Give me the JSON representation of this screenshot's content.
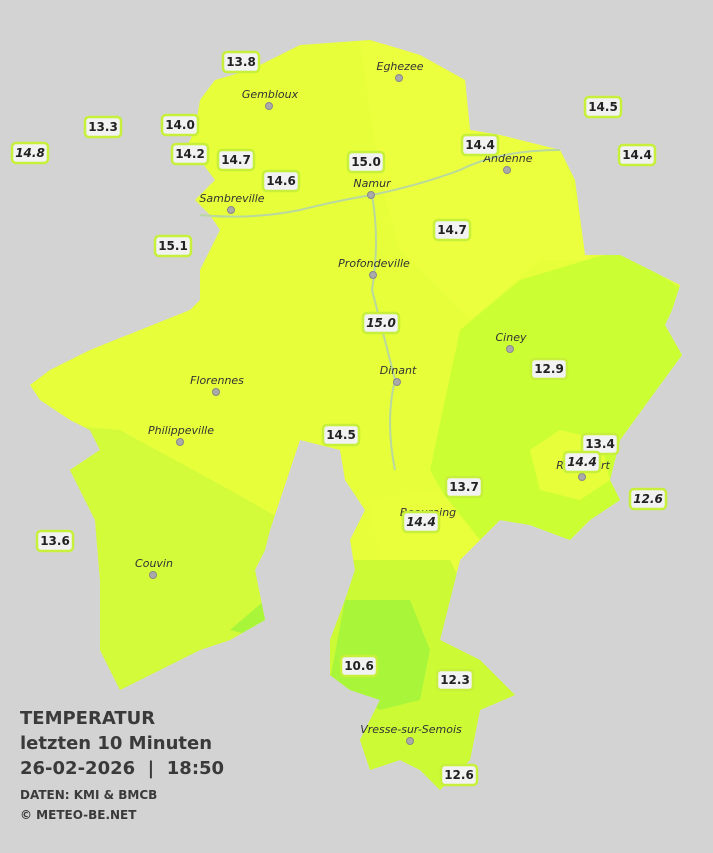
{
  "map": {
    "title": "TEMPERATUR",
    "subtitle": "letzten 10 Minuten",
    "datetime": "26-02-2026  |  18:50",
    "source": "DATEN: KMI & BMCB",
    "copyright": "© METEO-BE.NET",
    "towns": [
      "Eghezee",
      "Gembloux",
      "Andenne",
      "Namur",
      "Sambreville",
      "Profondeville",
      "Ciney",
      "Dinant",
      "Florennes",
      "Philippeville",
      "Rochefort",
      "Beauraing",
      "Couvin",
      "Vresse-sur-Semois"
    ],
    "stations": [
      {
        "value": "13.8",
        "italic": false
      },
      {
        "value": "13.3",
        "italic": false
      },
      {
        "value": "14.8",
        "italic": true
      },
      {
        "value": "14.0",
        "italic": false
      },
      {
        "value": "14.2",
        "italic": false
      },
      {
        "value": "14.7",
        "italic": false
      },
      {
        "value": "14.6",
        "italic": false
      },
      {
        "value": "15.0",
        "italic": false
      },
      {
        "value": "14.4",
        "italic": false
      },
      {
        "value": "14.5",
        "italic": false
      },
      {
        "value": "14.4",
        "italic": false
      },
      {
        "value": "15.1",
        "italic": false
      },
      {
        "value": "14.7",
        "italic": false
      },
      {
        "value": "15.0",
        "italic": true
      },
      {
        "value": "12.9",
        "italic": false
      },
      {
        "value": "14.5",
        "italic": false
      },
      {
        "value": "13.4",
        "italic": false
      },
      {
        "value": "14.4",
        "italic": true
      },
      {
        "value": "13.7",
        "italic": false
      },
      {
        "value": "12.6",
        "italic": true
      },
      {
        "value": "14.4",
        "italic": true
      },
      {
        "value": "13.6",
        "italic": false
      },
      {
        "value": "10.6",
        "italic": false
      },
      {
        "value": "12.3",
        "italic": false
      },
      {
        "value": "12.6",
        "italic": false
      }
    ]
  }
}
